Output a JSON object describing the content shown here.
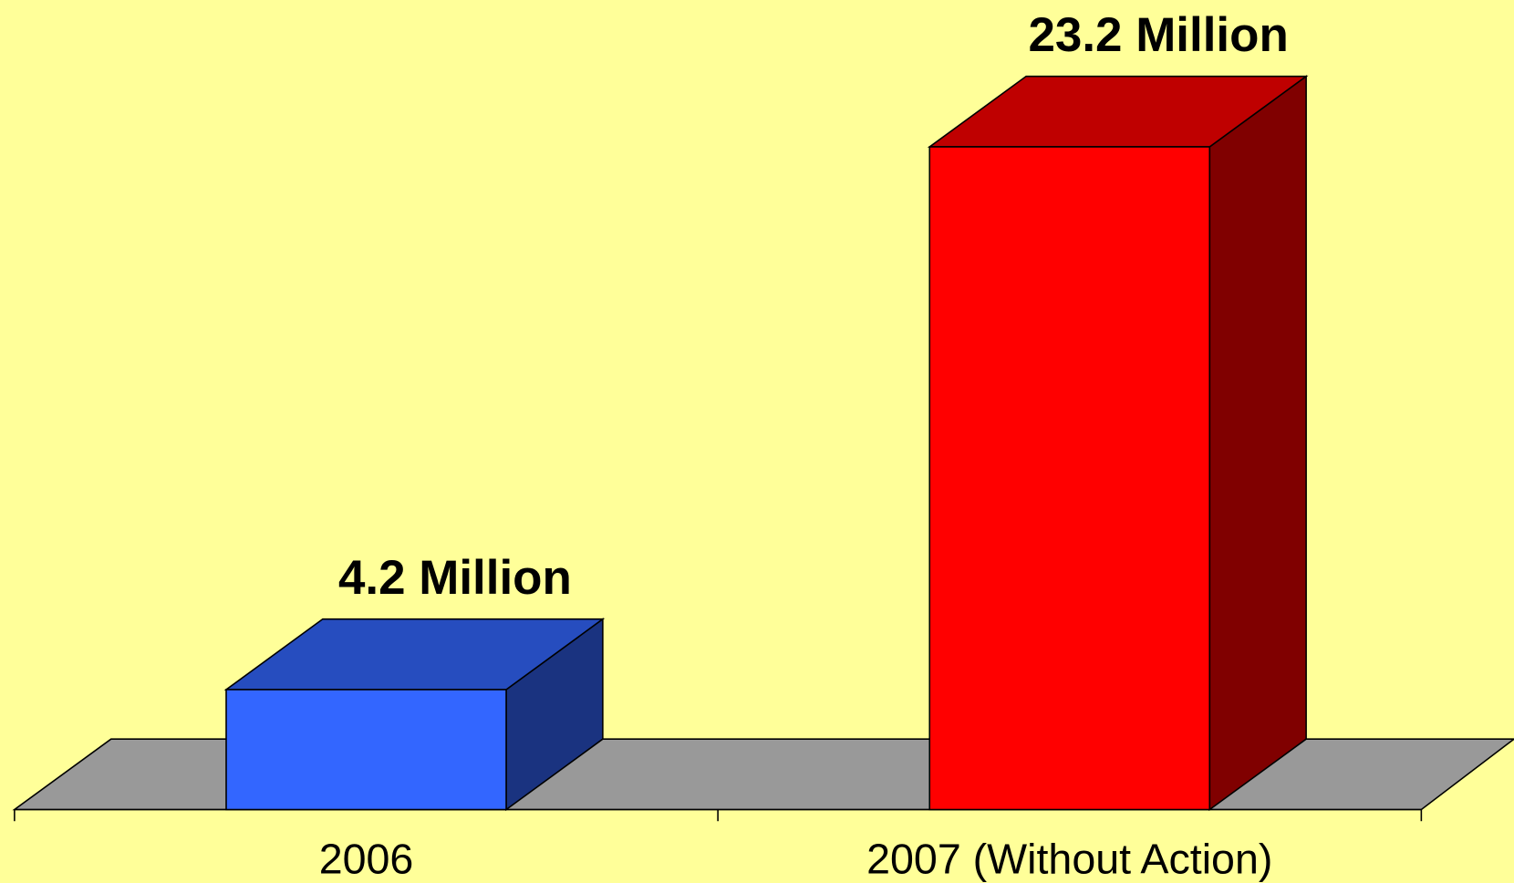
{
  "chart_data": {
    "type": "bar3d",
    "categories": [
      "2006",
      "2007 (Without Action)"
    ],
    "values": [
      4.2,
      23.2
    ],
    "value_labels": [
      "4.2 Million",
      "23.2 Million"
    ],
    "colors": [
      "#3366ff",
      "#ff0000"
    ]
  }
}
